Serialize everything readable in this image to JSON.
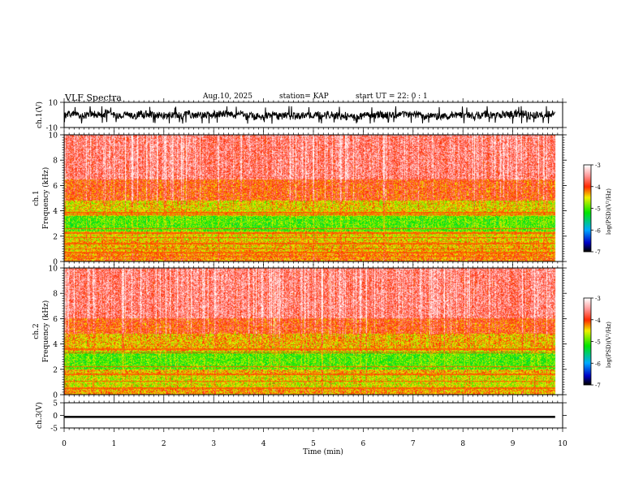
{
  "header": {
    "title": "VLF Spectra",
    "date": "Aug.10, 2025",
    "station": "station= KAP",
    "start": "start  UT =   22: 0  : 1"
  },
  "chart_data": [
    {
      "type": "line",
      "name": "ch1-waveform",
      "ylabel": "ch.1(V)",
      "ylim": [
        -10,
        10
      ],
      "yticks": [
        "10",
        "-10"
      ],
      "x_range_min": [
        0,
        9.85
      ],
      "amplitude_range": [
        -7,
        7
      ]
    },
    {
      "type": "heatmap",
      "name": "ch1-spectrogram",
      "ylabel_channel": "ch.1",
      "ylabel": "Frequency  (kHz)",
      "ylim": [
        0,
        10
      ],
      "yticks": [
        "0",
        "2",
        "4",
        "6",
        "8",
        "10"
      ],
      "x_data_range_min": [
        0,
        9.85
      ],
      "colorbar": {
        "label": "log(PSD)(V²/Hz)",
        "range": [
          -7,
          -3
        ],
        "ticks": [
          "-3",
          "-4",
          "-5",
          "-6",
          "-7"
        ]
      },
      "bands_khz": [
        {
          "from": 0.0,
          "to": 0.7,
          "level": -4.2
        },
        {
          "from": 0.7,
          "to": 1.6,
          "level": -4.4
        },
        {
          "from": 1.6,
          "to": 2.4,
          "level": -4.5
        },
        {
          "from": 2.4,
          "to": 3.6,
          "level": -5.0
        },
        {
          "from": 3.6,
          "to": 4.8,
          "level": -4.5
        },
        {
          "from": 4.8,
          "to": 6.5,
          "level": -4.0
        },
        {
          "from": 6.5,
          "to": 10.0,
          "level": -3.6
        }
      ],
      "lines_khz": [
        0.4,
        0.7,
        1.0,
        1.4,
        1.9,
        2.25,
        2.6,
        3.7,
        3.85
      ]
    },
    {
      "type": "heatmap",
      "name": "ch2-spectrogram",
      "ylabel_channel": "ch.2",
      "ylabel": "Frequency  (kHz)",
      "ylim": [
        0,
        10
      ],
      "yticks": [
        "0",
        "2",
        "4",
        "6",
        "8",
        "10"
      ],
      "x_data_range_min": [
        0,
        9.85
      ],
      "colorbar": {
        "label": "log(PSD)(V²/Hz)",
        "range": [
          -7,
          -3
        ],
        "ticks": [
          "-3",
          "-4",
          "-5",
          "-6",
          "-7"
        ]
      },
      "bands_khz": [
        {
          "from": 0.0,
          "to": 0.5,
          "level": -4.3
        },
        {
          "from": 0.5,
          "to": 1.6,
          "level": -4.6
        },
        {
          "from": 1.6,
          "to": 2.0,
          "level": -4.4
        },
        {
          "from": 2.0,
          "to": 3.4,
          "level": -5.0
        },
        {
          "from": 3.4,
          "to": 4.8,
          "level": -4.4
        },
        {
          "from": 4.8,
          "to": 6.0,
          "level": -4.0
        },
        {
          "from": 6.0,
          "to": 10.0,
          "level": -3.6
        }
      ],
      "lines_khz": [
        0.5,
        1.05,
        1.6,
        2.2,
        3.3,
        3.6
      ]
    },
    {
      "type": "line",
      "name": "ch3-waveform",
      "ylabel": "ch.3(V)",
      "ylim": [
        -5,
        5
      ],
      "yticks": [
        "5",
        "0",
        "-5"
      ],
      "x_range_min": [
        0,
        9.85
      ],
      "amplitude_range": [
        -1.0,
        -0.2
      ]
    }
  ],
  "xaxis": {
    "label": "Time  (min)",
    "range": [
      0,
      10
    ],
    "ticks": [
      "0",
      "1",
      "2",
      "3",
      "4",
      "5",
      "6",
      "7",
      "8",
      "9",
      "10"
    ]
  }
}
